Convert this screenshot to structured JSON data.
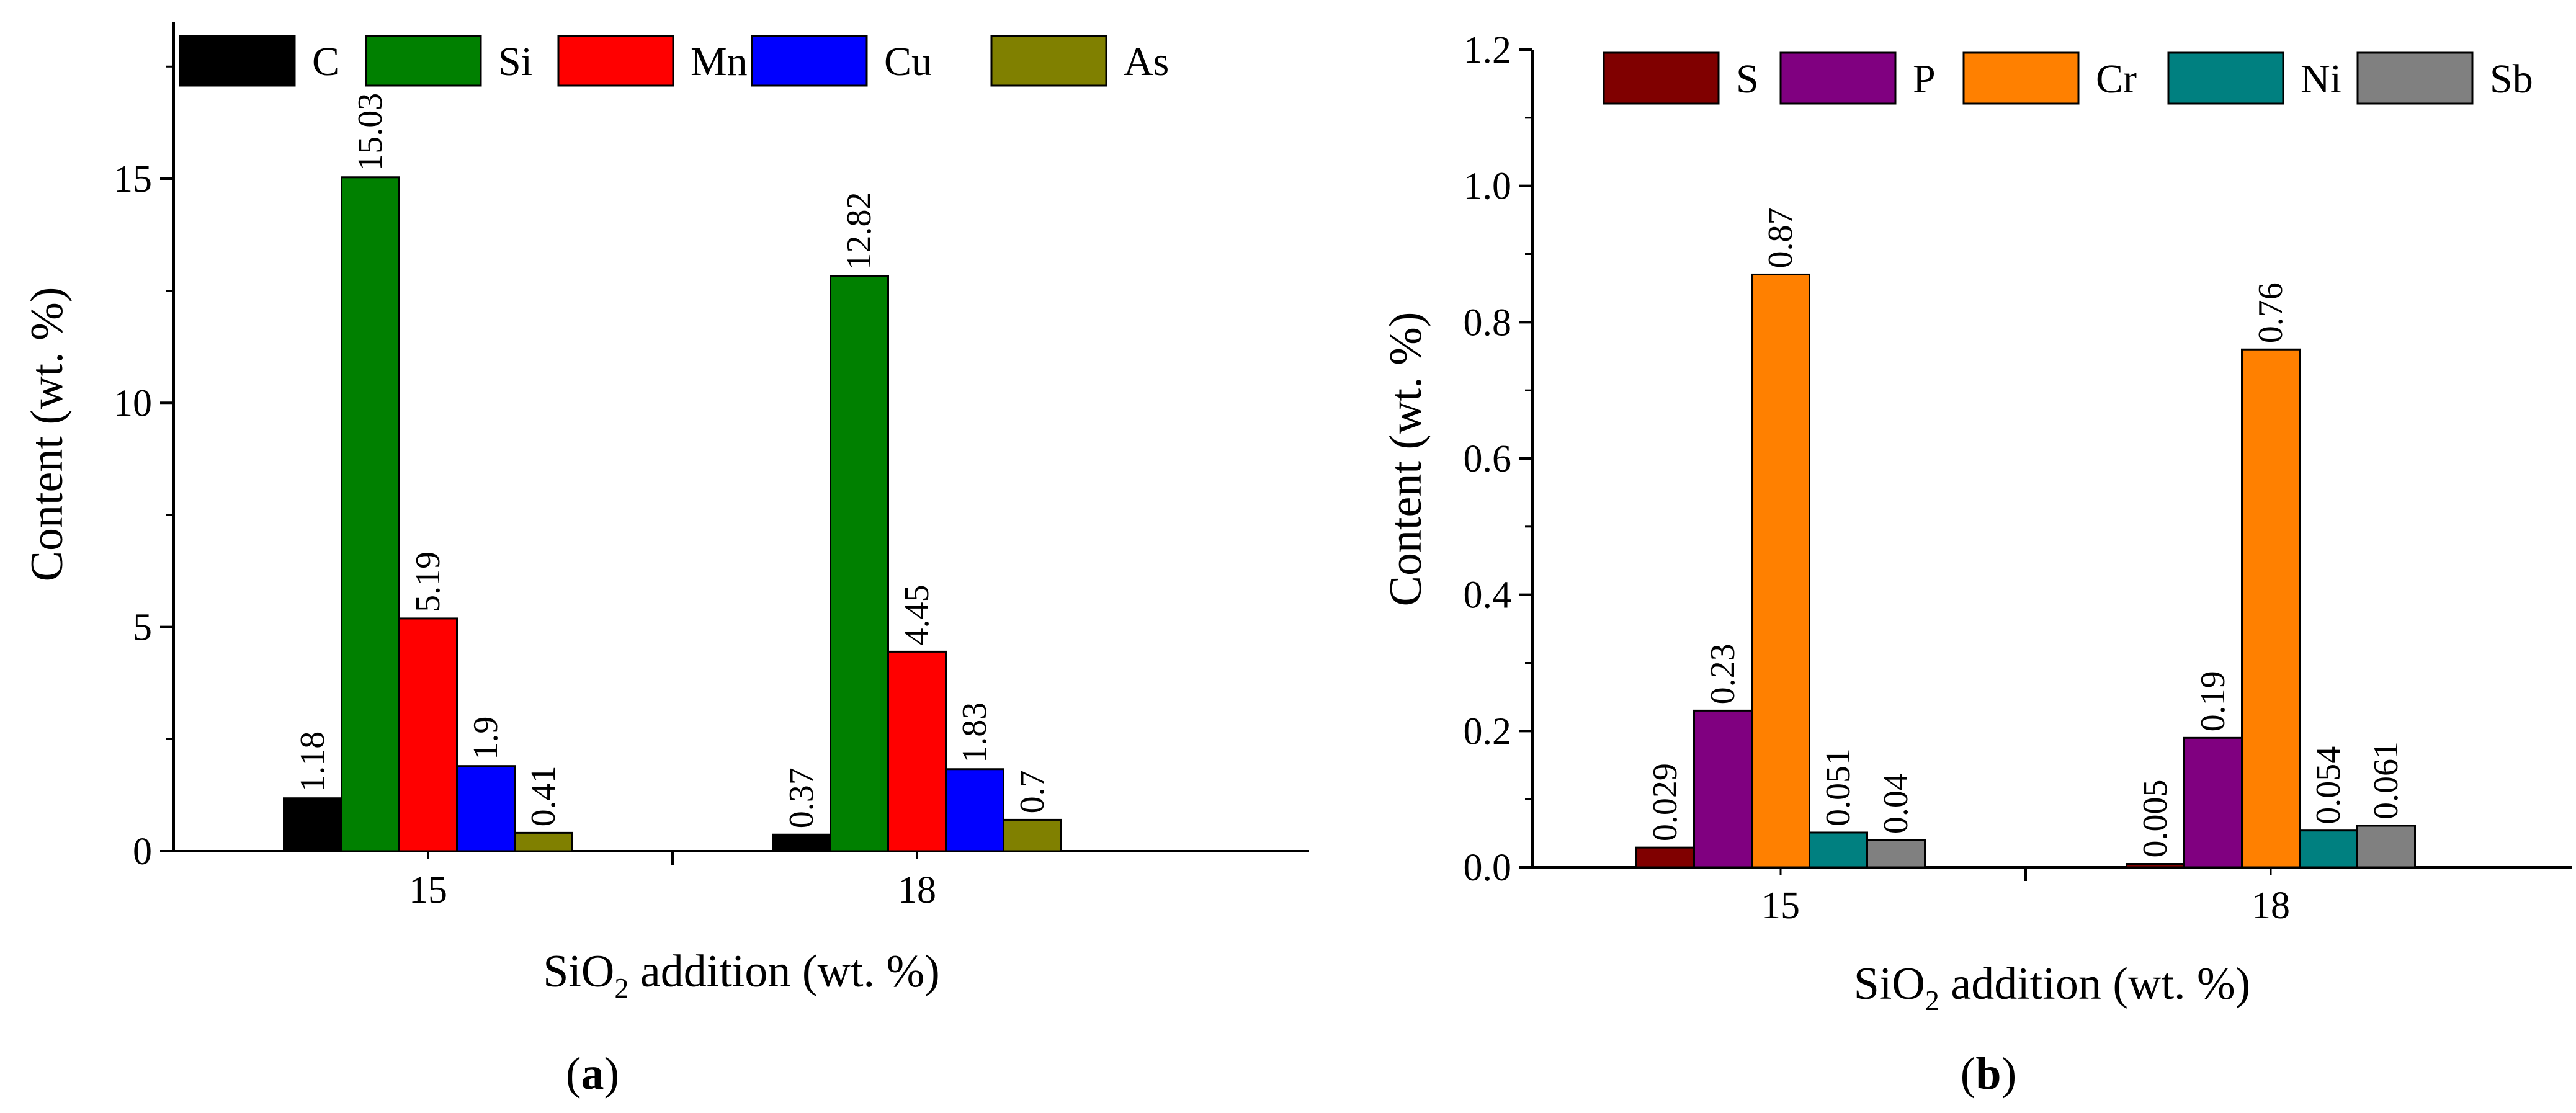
{
  "chart_data": [
    {
      "type": "bar",
      "panel_label": "a",
      "xlabel_main": "SiO",
      "xlabel_sub": "2",
      "xlabel_rest": " addition (wt. %)",
      "ylabel": "Content (wt. %)",
      "categories": [
        "15",
        "18"
      ],
      "ylim": [
        0,
        18.5
      ],
      "yticks": [
        0,
        5,
        10,
        15
      ],
      "ytick_labels": [
        "0",
        "5",
        "10",
        "15"
      ],
      "legend_position": "top",
      "series": [
        {
          "name": "C",
          "color": "#000000",
          "values": [
            1.18,
            0.37
          ],
          "labels": [
            "1.18",
            "0.37"
          ]
        },
        {
          "name": "Si",
          "color": "#008000",
          "values": [
            15.03,
            12.82
          ],
          "labels": [
            "15.03",
            "12.82"
          ]
        },
        {
          "name": "Mn",
          "color": "#ff0000",
          "values": [
            5.19,
            4.45
          ],
          "labels": [
            "5.19",
            "4.45"
          ]
        },
        {
          "name": "Cu",
          "color": "#0000ff",
          "values": [
            1.9,
            1.83
          ],
          "labels": [
            "1.9",
            "1.83"
          ]
        },
        {
          "name": "As",
          "color": "#808000",
          "values": [
            0.41,
            0.7
          ],
          "labels": [
            "0.41",
            "0.7"
          ]
        }
      ]
    },
    {
      "type": "bar",
      "panel_label": "b",
      "xlabel_main": "SiO",
      "xlabel_sub": "2",
      "xlabel_rest": " addition (wt. %)",
      "ylabel": "Content (wt. %)",
      "categories": [
        "15",
        "18"
      ],
      "ylim": [
        0,
        1.2
      ],
      "yticks": [
        0,
        0.2,
        0.4,
        0.6,
        0.8,
        1.0,
        1.2
      ],
      "ytick_labels": [
        "0.0",
        "0.2",
        "0.4",
        "0.6",
        "0.8",
        "1.0",
        "1.2"
      ],
      "legend_position": "top",
      "series": [
        {
          "name": "S",
          "color": "#800000",
          "values": [
            0.029,
            0.005
          ],
          "labels": [
            "0.029",
            "0.005"
          ]
        },
        {
          "name": "P",
          "color": "#800080",
          "values": [
            0.23,
            0.19
          ],
          "labels": [
            "0.23",
            "0.19"
          ]
        },
        {
          "name": "Cr",
          "color": "#ff8000",
          "values": [
            0.87,
            0.76
          ],
          "labels": [
            "0.87",
            "0.76"
          ]
        },
        {
          "name": "Ni",
          "color": "#008080",
          "values": [
            0.051,
            0.054
          ],
          "labels": [
            "0.051",
            "0.054"
          ]
        },
        {
          "name": "Sb",
          "color": "#808080",
          "values": [
            0.04,
            0.061
          ],
          "labels": [
            "0.04",
            "0.061"
          ]
        }
      ]
    }
  ]
}
